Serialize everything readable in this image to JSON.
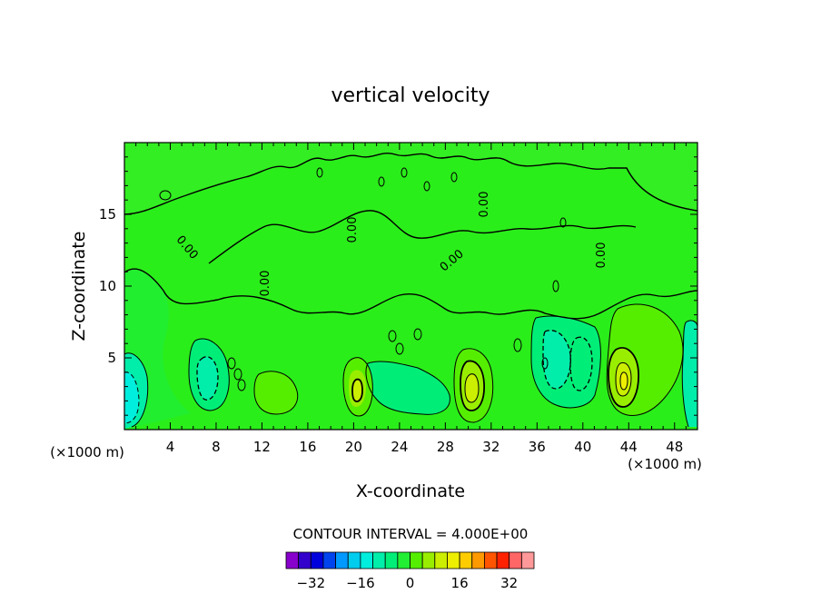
{
  "chart_data": {
    "type": "contour",
    "title": "vertical velocity",
    "xlabel": "X-coordinate",
    "ylabel": "Z-coordinate",
    "x_unit_label_left": "(×1000 m)",
    "x_unit_label_right": "(×1000 m)",
    "xlim": [
      0,
      50
    ],
    "ylim": [
      0,
      20
    ],
    "x_ticks": [
      4,
      8,
      12,
      16,
      20,
      24,
      28,
      32,
      36,
      40,
      44,
      48
    ],
    "y_ticks": [
      5,
      10,
      15
    ],
    "contour_interval_label": "CONTOUR INTERVAL = 4.000E+00",
    "contour_label_value": "0.00",
    "colorbar": {
      "levels": [
        -36,
        -32,
        -28,
        -24,
        -20,
        -16,
        -12,
        -8,
        -4,
        0,
        4,
        8,
        12,
        16,
        20,
        24,
        28,
        32,
        36
      ],
      "tick_labels": [
        "−32",
        "−16",
        "0",
        "16",
        "32"
      ],
      "tick_values": [
        -32,
        -16,
        0,
        16,
        32
      ],
      "colors": [
        "#8800cc",
        "#3300cc",
        "#0000dd",
        "#0044ee",
        "#0099ff",
        "#00ccee",
        "#00eedd",
        "#00eeaa",
        "#00ee77",
        "#22ee33",
        "#55ee00",
        "#99ee00",
        "#ccee00",
        "#eeee00",
        "#ffcc00",
        "#ff9900",
        "#ff5500",
        "#ff2200",
        "#ff6666",
        "#ff9999"
      ]
    },
    "background_value_color": "#2aee1a",
    "features": [
      {
        "x": 1.2,
        "z": 2.5,
        "sign": "negative",
        "peak": -10
      },
      {
        "x": 7.5,
        "z": 3.5,
        "sign": "negative",
        "peak": -8
      },
      {
        "x": 13.8,
        "z": 2.8,
        "sign": "positive",
        "peak": 6
      },
      {
        "x": 20.5,
        "z": 3.2,
        "sign": "positive",
        "peak": 14
      },
      {
        "x": 23.0,
        "z": 3.0,
        "sign": "negative",
        "peak": -6
      },
      {
        "x": 26.5,
        "z": 3.0,
        "sign": "negative",
        "peak": -6
      },
      {
        "x": 30.0,
        "z": 3.0,
        "sign": "positive",
        "peak": 16
      },
      {
        "x": 37.5,
        "z": 4.5,
        "sign": "negative",
        "peak": -8
      },
      {
        "x": 40.0,
        "z": 4.0,
        "sign": "negative",
        "peak": -8
      },
      {
        "x": 43.5,
        "z": 3.5,
        "sign": "positive",
        "peak": 18
      },
      {
        "x": 45.5,
        "z": 5.5,
        "sign": "positive",
        "peak": 5
      },
      {
        "x": 49.5,
        "z": 3.0,
        "sign": "negative",
        "peak": -6
      }
    ]
  }
}
